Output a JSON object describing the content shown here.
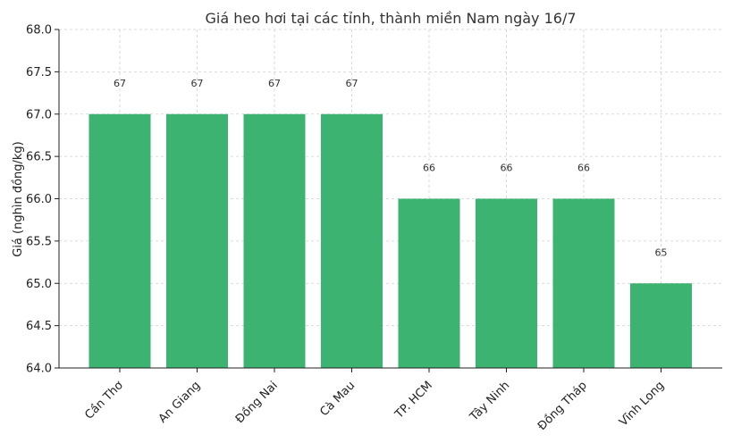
{
  "chart_data": {
    "type": "bar",
    "title": "Giá heo hơi tại các tỉnh, thành miền Nam ngày 16/7",
    "xlabel": "",
    "ylabel": "Giá (nghìn đồng/kg)",
    "categories": [
      "Cần Thơ",
      "An Giang",
      "Đồng Nai",
      "Cà Mau",
      "TP. HCM",
      "Tây Ninh",
      "Đồng Tháp",
      "Vĩnh Long"
    ],
    "values": [
      67,
      67,
      67,
      67,
      66,
      66,
      66,
      65
    ],
    "data_labels": [
      "67",
      "67",
      "67",
      "67",
      "66",
      "66",
      "66",
      "65"
    ],
    "ylim": [
      64.0,
      68.0
    ],
    "yticks": [
      "64.0",
      "64.5",
      "65.0",
      "65.5",
      "66.0",
      "66.5",
      "67.0",
      "67.5",
      "68.0"
    ],
    "grid": true,
    "bar_color": "#3cb371"
  }
}
